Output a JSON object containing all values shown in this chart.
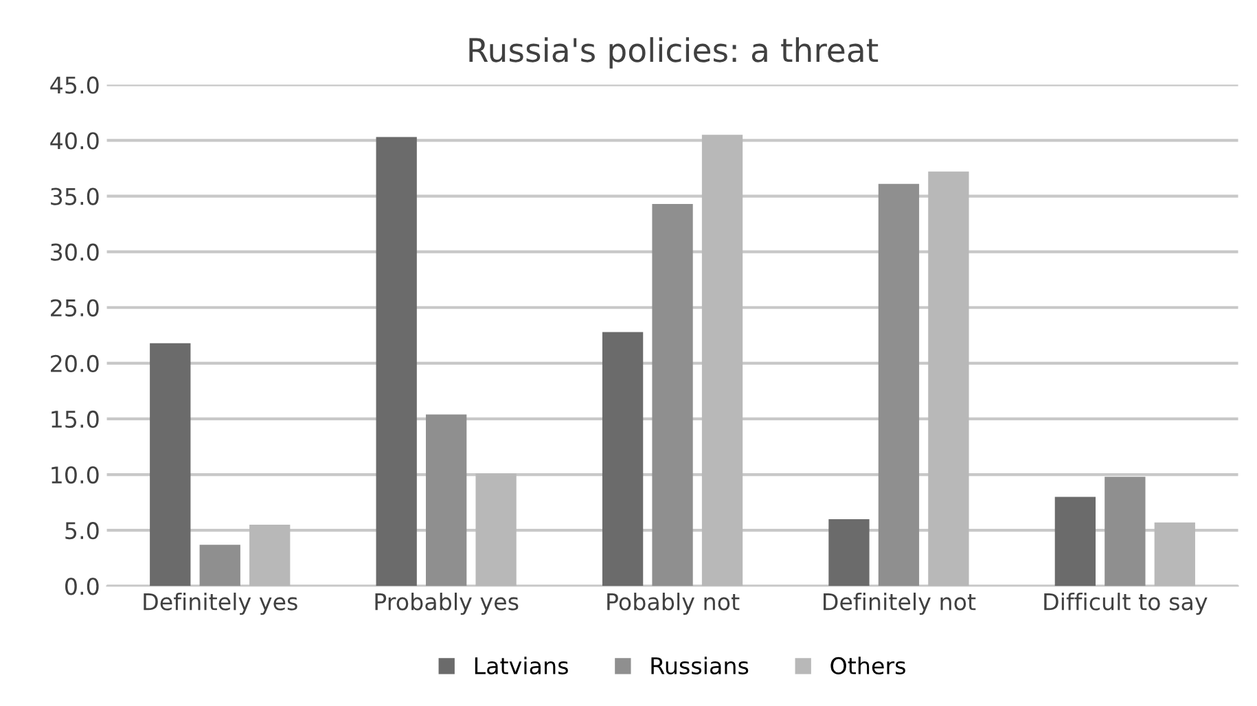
{
  "chart_data": {
    "type": "bar",
    "title": "Russia's policies: a threat",
    "categories": [
      "Definitely yes",
      "Probably yes",
      "Pobably not",
      "Definitely not",
      "Difficult to say"
    ],
    "series": [
      {
        "name": "Latvians",
        "color": "#6b6b6b",
        "values": [
          21.8,
          40.3,
          22.8,
          6.0,
          8.0
        ]
      },
      {
        "name": "Russians",
        "color": "#8f8f8f",
        "values": [
          3.7,
          15.4,
          34.3,
          36.1,
          9.8
        ]
      },
      {
        "name": "Others",
        "color": "#b8b8b8",
        "values": [
          5.5,
          10.1,
          40.5,
          37.2,
          5.7
        ]
      }
    ],
    "ylim": [
      0,
      45
    ],
    "yticks": [
      {
        "value": 0,
        "label": "0.0"
      },
      {
        "value": 5,
        "label": "5.0"
      },
      {
        "value": 10,
        "label": "10.0"
      },
      {
        "value": 15,
        "label": "15.0"
      },
      {
        "value": 20,
        "label": "20.0"
      },
      {
        "value": 25,
        "label": "25.0"
      },
      {
        "value": 30,
        "label": "30.0"
      },
      {
        "value": 35,
        "label": "35.0"
      },
      {
        "value": 40,
        "label": "40.0"
      },
      {
        "value": 45,
        "label": "45.0"
      }
    ],
    "grid": "y",
    "legend": "bottom"
  }
}
